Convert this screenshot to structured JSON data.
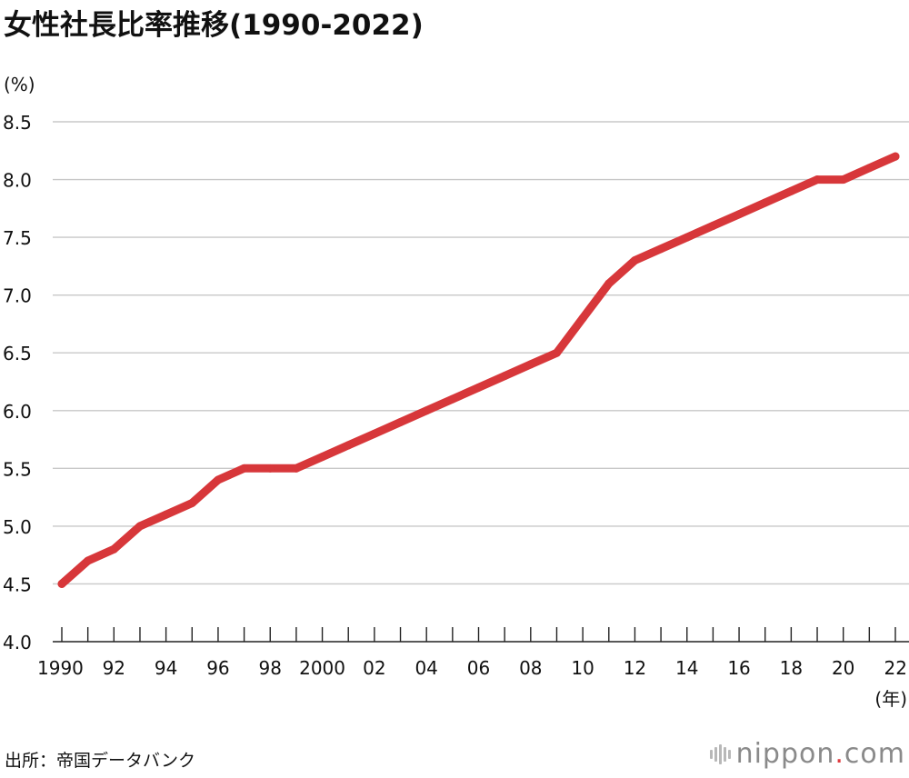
{
  "title": "女性社長比率推移(1990-2022)",
  "source": "出所：帝国データバンク",
  "logo": {
    "name": "nippon",
    "dot": ".",
    "tld": "com"
  },
  "colors": {
    "line": "#d7373a",
    "grid": "#c8c8c8",
    "logo_dot": "#e03a3e"
  },
  "chart_data": {
    "type": "line",
    "title": "女性社長比率推移(1990-2022)",
    "ylabel": "(%)",
    "xlabel": "(年)",
    "ylim": [
      4.0,
      8.5
    ],
    "xlim": [
      1990,
      2022
    ],
    "yticks": [
      4.0,
      4.5,
      5.0,
      5.5,
      6.0,
      6.5,
      7.0,
      7.5,
      8.0,
      8.5
    ],
    "ytick_labels": [
      "4.0",
      "4.5",
      "5.0",
      "5.5",
      "6.0",
      "6.5",
      "7.0",
      "7.5",
      "8.0",
      "8.5"
    ],
    "xticks": [
      1990,
      1992,
      1994,
      1996,
      1998,
      2000,
      2002,
      2004,
      2006,
      2008,
      2010,
      2012,
      2014,
      2016,
      2018,
      2020,
      2022
    ],
    "xtick_labels": [
      "1990",
      "92",
      "94",
      "96",
      "98",
      "2000",
      "02",
      "04",
      "06",
      "08",
      "10",
      "12",
      "14",
      "16",
      "18",
      "20",
      "22"
    ],
    "grid": true,
    "series": [
      {
        "x": [
          1990,
          1991,
          1992,
          1993,
          1994,
          1995,
          1996,
          1997,
          1998,
          1999,
          2000,
          2001,
          2002,
          2003,
          2004,
          2005,
          2006,
          2007,
          2008,
          2009,
          2010,
          2011,
          2012,
          2013,
          2014,
          2015,
          2016,
          2017,
          2018,
          2019,
          2020,
          2021,
          2022
        ],
        "y": [
          4.5,
          4.7,
          4.8,
          5.0,
          5.1,
          5.2,
          5.4,
          5.5,
          5.5,
          5.5,
          5.6,
          5.7,
          5.8,
          5.9,
          6.0,
          6.1,
          6.2,
          6.3,
          6.4,
          6.5,
          6.8,
          7.1,
          7.3,
          7.4,
          7.5,
          7.6,
          7.7,
          7.8,
          7.9,
          8.0,
          8.0,
          8.1,
          8.2
        ]
      }
    ]
  }
}
